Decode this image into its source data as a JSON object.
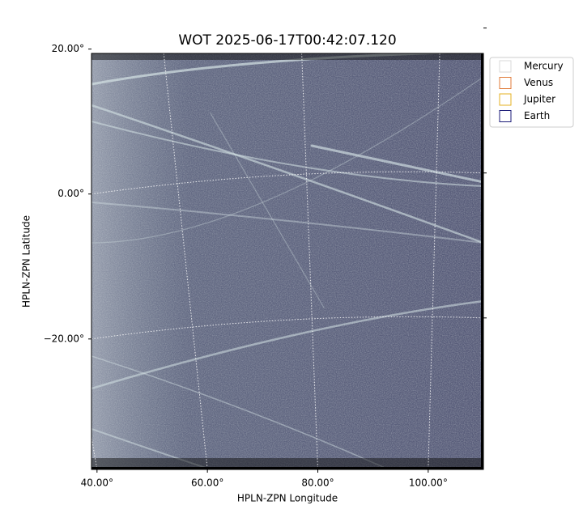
{
  "chart_data": {
    "type": "image",
    "title": "WOT 2025-06-17T00:42:07.120",
    "x_label": "HPLN-ZPN Longitude",
    "y_label": "HPLN-ZPN Latitude",
    "xlim": [
      39,
      110
    ],
    "ylim": [
      -38,
      19.4
    ],
    "xticks": [
      {
        "value": 40,
        "label": "40.00°"
      },
      {
        "value": 60,
        "label": "60.00°"
      },
      {
        "value": 80,
        "label": "80.00°"
      },
      {
        "value": 100,
        "label": "100.00°"
      }
    ],
    "yticks": [
      {
        "value": 20,
        "label": "20.00°"
      },
      {
        "value": 0,
        "label": "0.00°"
      },
      {
        "value": -20,
        "label": "−20.00°"
      }
    ],
    "grid": true,
    "legend": "upper right",
    "series": [
      {
        "name": "Mercury",
        "color": "#d9d9d9"
      },
      {
        "name": "Venus",
        "color": "#e07b39"
      },
      {
        "name": "Jupiter",
        "color": "#e6b022"
      },
      {
        "name": "Earth",
        "color": "#1b1b78"
      }
    ]
  }
}
